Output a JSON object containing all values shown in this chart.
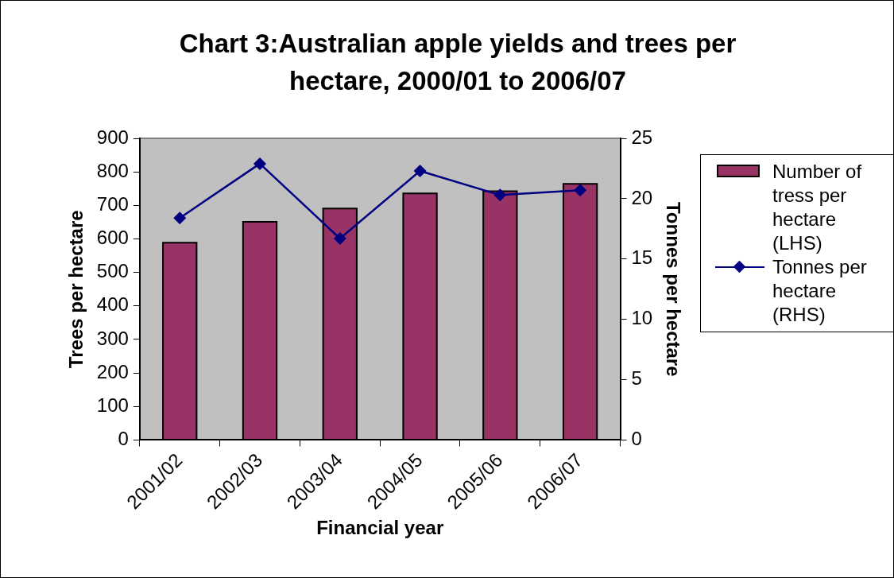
{
  "chart_data": {
    "type": "bar",
    "title": "Chart 3:Australian apple yields and trees per hectare, 2000/01 to 2006/07",
    "xlabel": "Financial year",
    "ylabel": "Trees per hectare",
    "y2label": "Tonnes per hectare",
    "categories": [
      "2001/02",
      "2002/03",
      "2003/04",
      "2004/05",
      "2005/06",
      "2006/07"
    ],
    "series": [
      {
        "name": "Number of tress per hectare (LHS)",
        "color": "#993366",
        "values": [
          589,
          651,
          691,
          736,
          742,
          764
        ]
      },
      {
        "name": "Tonnes per hectare (RHS)",
        "type": "line",
        "axis": "y2",
        "color": "#000080",
        "marker": "diamond",
        "values": [
          18.4,
          22.9,
          16.7,
          22.3,
          20.3,
          20.7
        ]
      }
    ],
    "ylim": [
      0,
      900
    ],
    "yticks": [
      0,
      100,
      200,
      300,
      400,
      500,
      600,
      700,
      800,
      900
    ],
    "y2lim": [
      0,
      25
    ],
    "y2ticks": [
      0,
      5,
      10,
      15,
      20,
      25
    ],
    "grid": false,
    "legend": "right"
  }
}
